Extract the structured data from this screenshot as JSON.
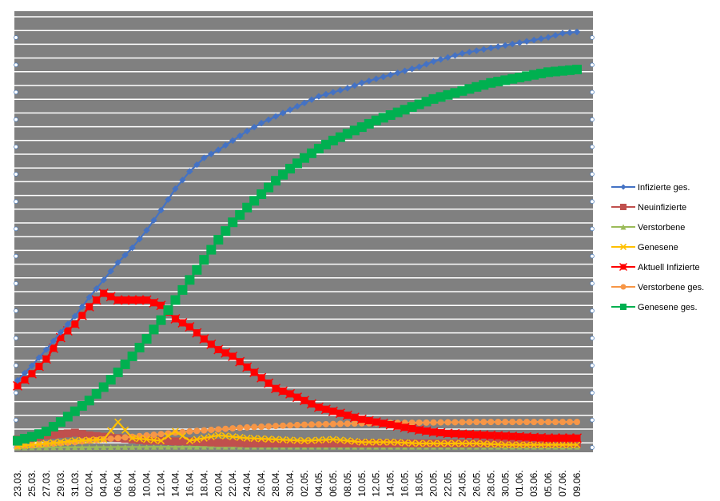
{
  "chart_data": {
    "type": "line",
    "title": "",
    "xlabel": "",
    "ylabel": "",
    "grid": true,
    "y_tick_labels_visible": false,
    "legend_position": "right",
    "plot_background": "#808080",
    "gridline_color": "#ffffff",
    "x_tick_labels": [
      "23.03.",
      "25.03.",
      "27.03.",
      "29.03.",
      "31.03.",
      "02.04.",
      "04.04.",
      "06.04.",
      "08.04.",
      "10.04.",
      "12.04.",
      "14.04.",
      "16.04.",
      "18.04.",
      "20.04.",
      "22.04.",
      "24.04.",
      "26.04.",
      "28.04.",
      "30.04.",
      "02.05.",
      "04.05.",
      "06.05.",
      "08.05.",
      "10.05.",
      "12.05.",
      "14.05.",
      "16.05.",
      "18.05.",
      "20.05.",
      "22.05.",
      "24.05.",
      "26.05.",
      "28.05.",
      "30.05.",
      "01.06.",
      "03.06.",
      "05.06.",
      "07.06.",
      "09.06."
    ],
    "ylim": [
      0,
      31
    ],
    "series": [
      {
        "name": "Infizierte ges.",
        "color": "#4472C4",
        "marker": "diamond",
        "anchors": [
          [
            0,
            5
          ],
          [
            1,
            6.1
          ],
          [
            2,
            7.3
          ],
          [
            3,
            8.6
          ],
          [
            4,
            9.8
          ],
          [
            5,
            11.2
          ],
          [
            6,
            12.5
          ],
          [
            7,
            13.8
          ],
          [
            8,
            14.9
          ],
          [
            9,
            16.2
          ],
          [
            10,
            17.7
          ],
          [
            11,
            19.3
          ],
          [
            12,
            20.6
          ],
          [
            13,
            21.6
          ],
          [
            14,
            22.2
          ],
          [
            15,
            22.9
          ],
          [
            16,
            23.6
          ],
          [
            17,
            24.2
          ],
          [
            18,
            24.7
          ],
          [
            19,
            25.2
          ],
          [
            20,
            25.7
          ],
          [
            21,
            26.2
          ],
          [
            22,
            26.5
          ],
          [
            23,
            26.8
          ],
          [
            24,
            27.2
          ],
          [
            25,
            27.5
          ],
          [
            26,
            27.8
          ],
          [
            27,
            28.1
          ],
          [
            28,
            28.4
          ],
          [
            29,
            28.8
          ],
          [
            30,
            29.1
          ],
          [
            31,
            29.4
          ],
          [
            32,
            29.6
          ],
          [
            33,
            29.8
          ],
          [
            34,
            30
          ],
          [
            35,
            30.2
          ],
          [
            36,
            30.4
          ],
          [
            37,
            30.6
          ],
          [
            38,
            30.9
          ],
          [
            39,
            31.0
          ]
        ]
      },
      {
        "name": "Neuinfizierte",
        "color": "#C0504D",
        "marker": "square",
        "anchors": [
          [
            0,
            0.6
          ],
          [
            1,
            0.7
          ],
          [
            2,
            0.9
          ],
          [
            3,
            1.0
          ],
          [
            4,
            1.1
          ],
          [
            5,
            0.9
          ],
          [
            6,
            0.8
          ],
          [
            7,
            0.7
          ],
          [
            8,
            0.6
          ],
          [
            9,
            0.5
          ],
          [
            10,
            0.5
          ],
          [
            11,
            0.45
          ],
          [
            12,
            0.45
          ],
          [
            13,
            0.4
          ],
          [
            14,
            0.35
          ],
          [
            15,
            0.35
          ],
          [
            16,
            0.3
          ],
          [
            17,
            0.3
          ],
          [
            18,
            0.3
          ],
          [
            19,
            0.3
          ],
          [
            20,
            0.3
          ],
          [
            21,
            0.3
          ],
          [
            22,
            0.3
          ],
          [
            23,
            0.3
          ],
          [
            24,
            0.3
          ],
          [
            25,
            0.3
          ],
          [
            26,
            0.3
          ],
          [
            27,
            0.3
          ],
          [
            28,
            0.3
          ],
          [
            29,
            0.3
          ],
          [
            30,
            0.3
          ],
          [
            31,
            0.3
          ],
          [
            32,
            0.3
          ],
          [
            33,
            0.3
          ],
          [
            34,
            0.3
          ],
          [
            35,
            0.3
          ],
          [
            36,
            0.3
          ],
          [
            37,
            0.3
          ],
          [
            38,
            0.3
          ],
          [
            39,
            0.3
          ]
        ]
      },
      {
        "name": "Verstorbene",
        "color": "#9BBB59",
        "marker": "triangle",
        "anchors": [
          [
            0,
            0
          ],
          [
            10,
            0.05
          ],
          [
            20,
            0.05
          ],
          [
            30,
            0.05
          ],
          [
            39,
            0.05
          ]
        ]
      },
      {
        "name": "Genesene",
        "color": "#FFC000",
        "marker": "x",
        "anchors": [
          [
            0,
            0.1
          ],
          [
            2,
            0.3
          ],
          [
            4,
            0.5
          ],
          [
            6,
            0.6
          ],
          [
            7,
            1.9
          ],
          [
            8,
            0.7
          ],
          [
            10,
            0.5
          ],
          [
            11,
            1.2
          ],
          [
            12,
            0.5
          ],
          [
            14,
            0.9
          ],
          [
            16,
            0.7
          ],
          [
            18,
            0.6
          ],
          [
            20,
            0.5
          ],
          [
            22,
            0.6
          ],
          [
            24,
            0.4
          ],
          [
            26,
            0.4
          ],
          [
            28,
            0.3
          ],
          [
            30,
            0.3
          ],
          [
            32,
            0.3
          ],
          [
            34,
            0.2
          ],
          [
            36,
            0.2
          ],
          [
            39,
            0.2
          ]
        ]
      },
      {
        "name": "Aktuell Infizierte",
        "color": "#FF0000",
        "marker": "x-square",
        "anchors": [
          [
            0,
            4.6
          ],
          [
            1,
            5.5
          ],
          [
            2,
            6.6
          ],
          [
            3,
            8.2
          ],
          [
            4,
            9.2
          ],
          [
            5,
            10.5
          ],
          [
            6,
            11.5
          ],
          [
            7,
            11.0
          ],
          [
            8,
            11.0
          ],
          [
            9,
            11.0
          ],
          [
            10,
            10.6
          ],
          [
            11,
            9.6
          ],
          [
            12,
            9.0
          ],
          [
            13,
            8.1
          ],
          [
            14,
            7.3
          ],
          [
            15,
            6.8
          ],
          [
            16,
            6.0
          ],
          [
            17,
            5.2
          ],
          [
            18,
            4.4
          ],
          [
            19,
            4.0
          ],
          [
            20,
            3.5
          ],
          [
            21,
            3.0
          ],
          [
            22,
            2.7
          ],
          [
            23,
            2.4
          ],
          [
            24,
            2.1
          ],
          [
            25,
            1.9
          ],
          [
            26,
            1.7
          ],
          [
            27,
            1.5
          ],
          [
            28,
            1.3
          ],
          [
            29,
            1.15
          ],
          [
            30,
            1.05
          ],
          [
            31,
            1.0
          ],
          [
            32,
            0.95
          ],
          [
            33,
            0.9
          ],
          [
            34,
            0.85
          ],
          [
            35,
            0.8
          ],
          [
            36,
            0.75
          ],
          [
            37,
            0.7
          ],
          [
            38,
            0.7
          ],
          [
            39,
            0.7
          ]
        ]
      },
      {
        "name": "Verstorbene ges.",
        "color": "#F79646",
        "marker": "circle",
        "anchors": [
          [
            0,
            0.1
          ],
          [
            4,
            0.4
          ],
          [
            8,
            0.8
          ],
          [
            12,
            1.2
          ],
          [
            16,
            1.5
          ],
          [
            20,
            1.7
          ],
          [
            24,
            1.8
          ],
          [
            28,
            1.85
          ],
          [
            32,
            1.9
          ],
          [
            36,
            1.9
          ],
          [
            39,
            1.9
          ]
        ]
      },
      {
        "name": "Genesene ges.",
        "color": "#00B050",
        "marker": "square",
        "anchors": [
          [
            0,
            0.5
          ],
          [
            1,
            0.8
          ],
          [
            2,
            1.2
          ],
          [
            3,
            1.9
          ],
          [
            4,
            2.7
          ],
          [
            5,
            3.5
          ],
          [
            6,
            4.5
          ],
          [
            7,
            5.6
          ],
          [
            8,
            6.8
          ],
          [
            9,
            8.1
          ],
          [
            10,
            9.5
          ],
          [
            11,
            11.0
          ],
          [
            12,
            12.5
          ],
          [
            13,
            14.0
          ],
          [
            14,
            15.5
          ],
          [
            15,
            16.8
          ],
          [
            16,
            17.9
          ],
          [
            17,
            18.9
          ],
          [
            18,
            19.9
          ],
          [
            19,
            20.8
          ],
          [
            20,
            21.6
          ],
          [
            21,
            22.3
          ],
          [
            22,
            22.9
          ],
          [
            23,
            23.4
          ],
          [
            24,
            23.9
          ],
          [
            25,
            24.4
          ],
          [
            26,
            24.8
          ],
          [
            27,
            25.2
          ],
          [
            28,
            25.6
          ],
          [
            29,
            26.0
          ],
          [
            30,
            26.3
          ],
          [
            31,
            26.6
          ],
          [
            32,
            26.9
          ],
          [
            33,
            27.2
          ],
          [
            34,
            27.4
          ],
          [
            35,
            27.6
          ],
          [
            36,
            27.8
          ],
          [
            37,
            28.0
          ],
          [
            38,
            28.1
          ],
          [
            39,
            28.2
          ]
        ]
      }
    ]
  }
}
